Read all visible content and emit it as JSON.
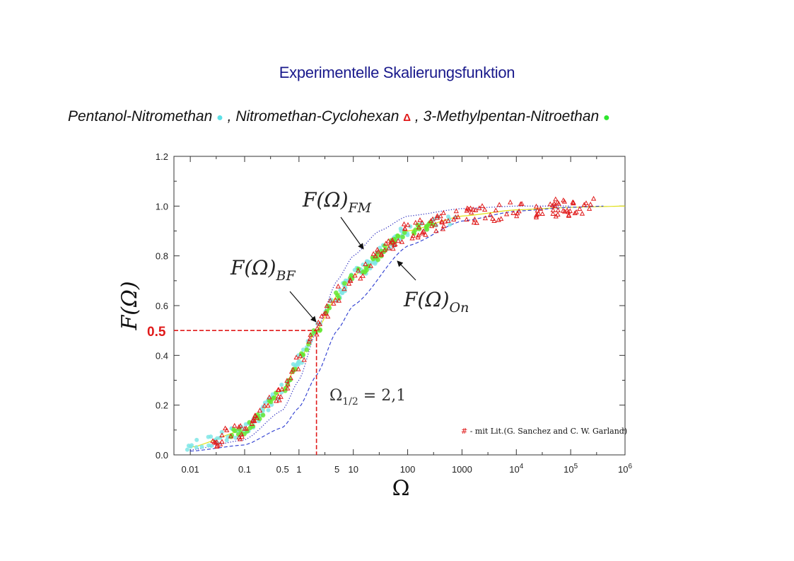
{
  "header": {
    "title": "Experimentelle Skalierungsfunktion",
    "legend": [
      {
        "label": "Pentanol-Nitromethan",
        "marker": "●",
        "sep": " , "
      },
      {
        "label": "Nitromethan-Cyclohexan",
        "marker": "Δ",
        "sep": " , "
      },
      {
        "label": "3-Methylpentan-Nitroethan",
        "marker": "●",
        "sep": ""
      }
    ]
  },
  "colors": {
    "pentanol": "#7fe6e6",
    "nitromethan": "#e01a1a",
    "methylpentan": "#66e633",
    "title": "#1a1a8c",
    "fm": "#3030c0",
    "on": "#2a3ad0",
    "bf": "#e0e01a"
  },
  "chart_data": {
    "type": "scatter",
    "title": "Experimentelle Skalierungsfunktion",
    "xlabel": "Ω",
    "ylabel": "F(Ω)",
    "x_scale": "log",
    "xlim": [
      0.005,
      1000000
    ],
    "ylim": [
      0.0,
      1.2
    ],
    "x_ticks": [
      {
        "v": 0.01,
        "label": "0.01"
      },
      {
        "v": 0.1,
        "label": "0.1"
      },
      {
        "v": 0.5,
        "label": "0.5"
      },
      {
        "v": 1,
        "label": "1"
      },
      {
        "v": 5,
        "label": "5"
      },
      {
        "v": 10,
        "label": "10"
      },
      {
        "v": 100,
        "label": "100"
      },
      {
        "v": 1000,
        "label": "1000"
      },
      {
        "v": 10000,
        "label": "10",
        "sup": "4"
      },
      {
        "v": 100000,
        "label": "10",
        "sup": "5"
      },
      {
        "v": 1000000,
        "label": "10",
        "sup": "6"
      }
    ],
    "y_ticks": [
      {
        "v": 0.0,
        "label": "0.0"
      },
      {
        "v": 0.2,
        "label": "0.2"
      },
      {
        "v": 0.4,
        "label": "0.4"
      },
      {
        "v": 0.6,
        "label": "0.6"
      },
      {
        "v": 0.8,
        "label": "0.8"
      },
      {
        "v": 1.0,
        "label": "1.0"
      },
      {
        "v": 1.2,
        "label": "1.2"
      }
    ],
    "series": [
      {
        "name": "Pentanol-Nitromethan",
        "marker": "circle"
      },
      {
        "name": "Nitromethan-Cyclohexan",
        "marker": "triangle"
      },
      {
        "name": "3-Methylpentan-Nitroethan",
        "marker": "circle"
      }
    ],
    "curves": [
      {
        "name": "F(Ω)_FM",
        "style": "dotted",
        "x": [
          0.01,
          0.1,
          0.5,
          1,
          2.1,
          5,
          10,
          30,
          100,
          1000,
          10000,
          100000
        ],
        "y": [
          0.02,
          0.06,
          0.18,
          0.3,
          0.5,
          0.7,
          0.8,
          0.9,
          0.96,
          0.99,
          1.0,
          1.0
        ]
      },
      {
        "name": "F(Ω)_BF",
        "style": "solid",
        "x": [
          0.01,
          0.1,
          0.5,
          1,
          2.1,
          5,
          10,
          100,
          1000,
          10000,
          100000,
          1000000
        ],
        "y": [
          0.03,
          0.1,
          0.26,
          0.38,
          0.5,
          0.64,
          0.72,
          0.9,
          0.96,
          0.985,
          0.995,
          1.0
        ]
      },
      {
        "name": "F(Ω)_On",
        "style": "dashed",
        "x": [
          0.01,
          0.1,
          0.5,
          1,
          2.1,
          5,
          10,
          100,
          1000,
          10000,
          100000,
          400000
        ],
        "y": [
          0.015,
          0.04,
          0.11,
          0.19,
          0.32,
          0.5,
          0.6,
          0.84,
          0.94,
          0.98,
          0.995,
          1.0
        ]
      }
    ],
    "annotations": {
      "fm": "F(Ω)",
      "fm_sub": "FM",
      "bf": "F(Ω)",
      "bf_sub": "BF",
      "on": "F(Ω)",
      "on_sub": "On",
      "half_value": "0.5",
      "half_x": 2.1,
      "omega_half": "Ω",
      "omega_half_sub": "1/2",
      "omega_half_val": " = 2,1",
      "lit_symbol": "#",
      "lit_text": " - mit Lit.(G. Sanchez and C. W. Garland)"
    }
  }
}
